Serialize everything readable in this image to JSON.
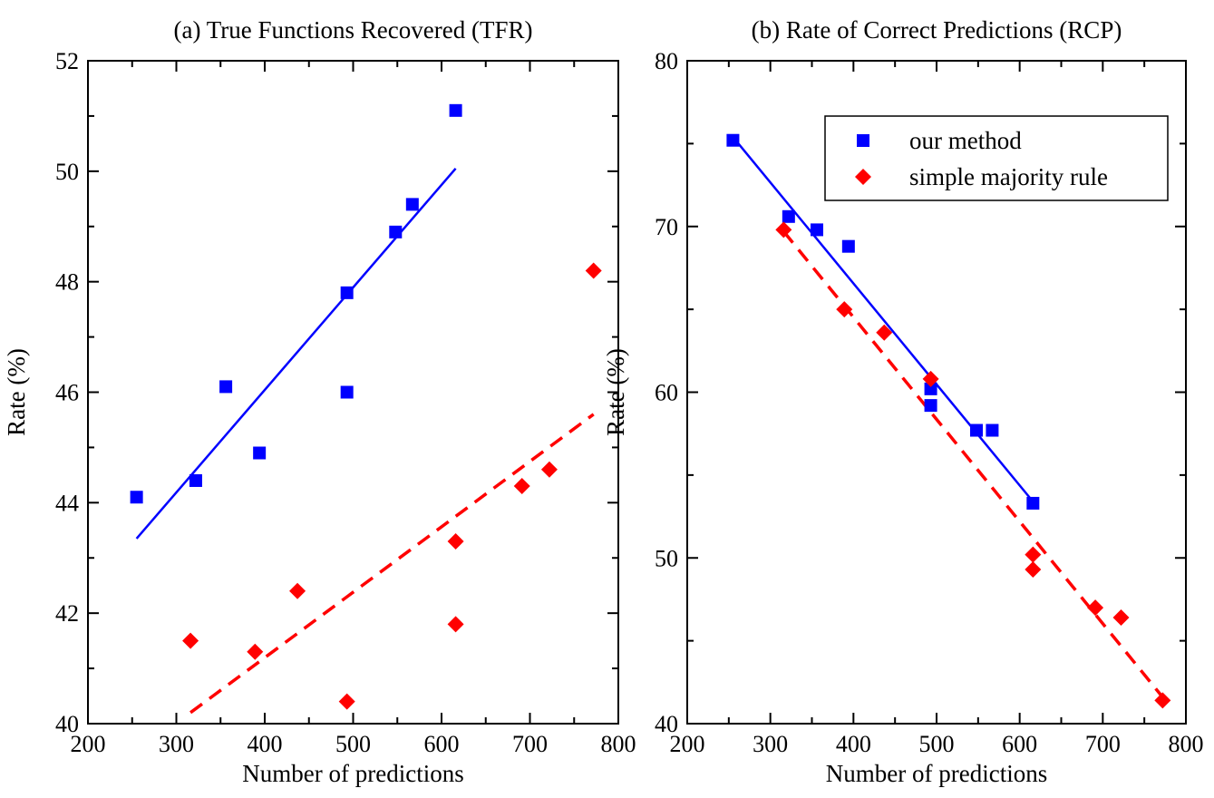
{
  "chart_data": [
    {
      "type": "scatter",
      "title": "(a) True Functions Recovered (TFR)",
      "xlabel": "Number of predictions",
      "ylabel": "Rate (%)",
      "xlim": [
        200,
        800
      ],
      "ylim": [
        40,
        52
      ],
      "xticks": [
        200,
        300,
        400,
        500,
        600,
        700,
        800
      ],
      "yticks": [
        40,
        42,
        44,
        46,
        48,
        50,
        52
      ],
      "legend": null,
      "series": [
        {
          "name": "our method",
          "marker": "square",
          "color": "#0000ff",
          "x": [
            255,
            322,
            356,
            394,
            493,
            493,
            548,
            567,
            616
          ],
          "y": [
            44.1,
            44.4,
            46.1,
            44.9,
            46.0,
            47.8,
            48.9,
            49.4,
            51.1
          ],
          "fit": {
            "x": [
              255,
              616
            ],
            "y": [
              43.35,
              50.05
            ],
            "style": "solid"
          }
        },
        {
          "name": "simple majority rule",
          "marker": "diamond",
          "color": "#ff0000",
          "x": [
            316,
            389,
            437,
            493,
            616,
            616,
            691,
            722,
            772
          ],
          "y": [
            41.5,
            41.3,
            42.4,
            40.4,
            43.3,
            41.8,
            44.3,
            44.6,
            48.2
          ],
          "fit": {
            "x": [
              316,
              772
            ],
            "y": [
              40.2,
              45.6
            ],
            "style": "dashed"
          }
        }
      ]
    },
    {
      "type": "scatter",
      "title": "(b) Rate of Correct Predictions (RCP)",
      "xlabel": "Number of predictions",
      "ylabel": "Rate (%)",
      "xlim": [
        200,
        800
      ],
      "ylim": [
        40,
        80
      ],
      "xticks": [
        200,
        300,
        400,
        500,
        600,
        700,
        800
      ],
      "yticks": [
        40,
        50,
        60,
        70,
        80
      ],
      "legend": "top-right",
      "series": [
        {
          "name": "our method",
          "marker": "square",
          "color": "#0000ff",
          "x": [
            255,
            322,
            356,
            394,
            493,
            493,
            548,
            567,
            616
          ],
          "y": [
            75.2,
            70.6,
            69.8,
            68.8,
            60.2,
            59.2,
            57.7,
            57.7,
            53.3
          ],
          "fit": {
            "x": [
              255,
              616
            ],
            "y": [
              75.4,
              53.4
            ],
            "style": "solid"
          }
        },
        {
          "name": "simple majority rule",
          "marker": "diamond",
          "color": "#ff0000",
          "x": [
            316,
            389,
            437,
            493,
            616,
            616,
            691,
            722,
            772
          ],
          "y": [
            69.8,
            65.0,
            63.6,
            60.8,
            50.2,
            49.3,
            47.0,
            46.4,
            41.4
          ],
          "fit": {
            "x": [
              316,
              772
            ],
            "y": [
              69.7,
              41.6
            ],
            "style": "dashed"
          }
        }
      ]
    }
  ]
}
